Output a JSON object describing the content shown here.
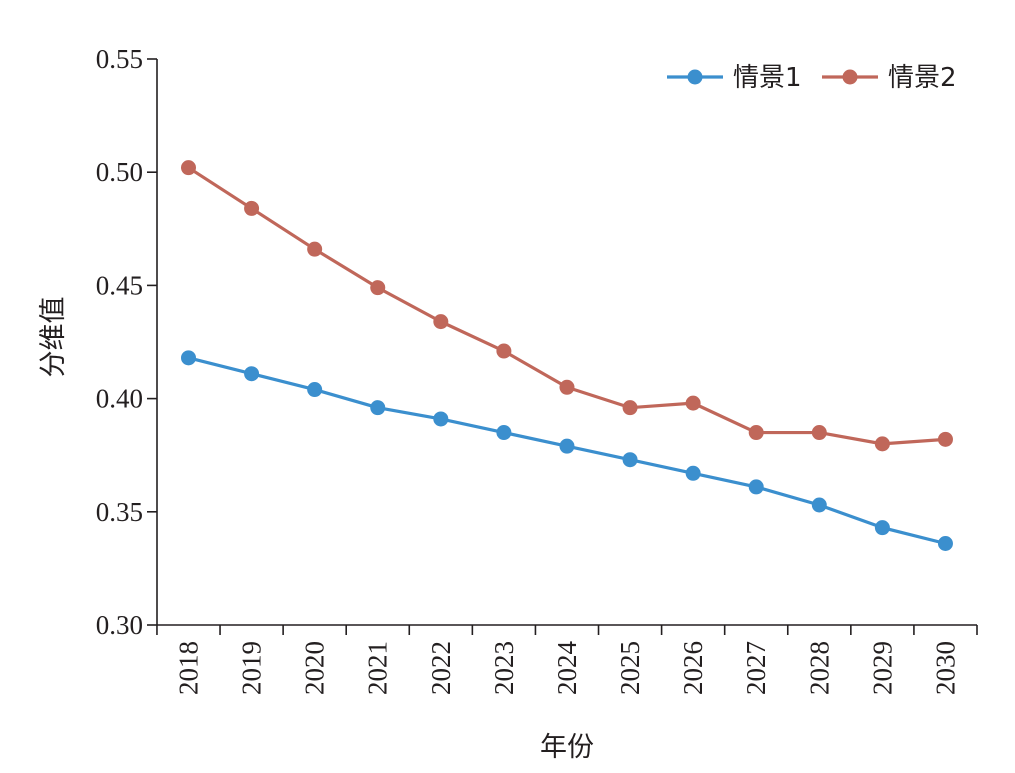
{
  "chart_data": {
    "type": "line",
    "categories": [
      "2018",
      "2019",
      "2020",
      "2021",
      "2022",
      "2023",
      "2024",
      "2025",
      "2026",
      "2027",
      "2028",
      "2029",
      "2030"
    ],
    "series": [
      {
        "name": "情景1",
        "color": "#3b8fce",
        "values": [
          0.418,
          0.411,
          0.404,
          0.396,
          0.391,
          0.385,
          0.379,
          0.373,
          0.367,
          0.361,
          0.353,
          0.343,
          0.336
        ]
      },
      {
        "name": "情景2",
        "color": "#c0675a",
        "values": [
          0.502,
          0.484,
          0.466,
          0.449,
          0.434,
          0.421,
          0.405,
          0.396,
          0.398,
          0.385,
          0.385,
          0.38,
          0.382
        ]
      }
    ],
    "xlabel": "年份",
    "ylabel": "分维值",
    "ylim": [
      0.3,
      0.55
    ],
    "yticks": [
      "0.30",
      "0.35",
      "0.40",
      "0.45",
      "0.50",
      "0.55"
    ],
    "grid": false,
    "legend_position": "top-right",
    "axis_color": "#231f20"
  }
}
